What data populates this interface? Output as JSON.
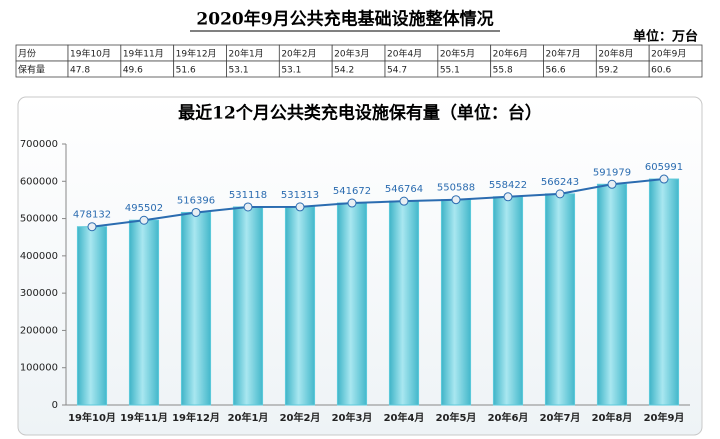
{
  "header": {
    "title": "2020年9月公共充电基础设施整体情况",
    "unit": "单位：万台"
  },
  "table": {
    "rows": [
      [
        "月份",
        "19年10月",
        "19年11月",
        "19年12月",
        "20年1月",
        "20年2月",
        "20年3月",
        "20年4月",
        "20年5月",
        "20年6月",
        "20年7月",
        "20年8月",
        "20年9月"
      ],
      [
        "保有量",
        47.8,
        49.6,
        51.6,
        53.1,
        53.1,
        54.2,
        54.7,
        55.1,
        55.8,
        56.6,
        59.2,
        60.6
      ]
    ]
  },
  "chart_data": {
    "type": "bar",
    "title": "最近12个月公共类充电设施保有量（单位：台）",
    "categories": [
      "19年10月",
      "19年11月",
      "19年12月",
      "20年1月",
      "20年2月",
      "20年3月",
      "20年4月",
      "20年5月",
      "20年6月",
      "20年7月",
      "20年8月",
      "20年9月"
    ],
    "values": [
      478132,
      495502,
      516396,
      531118,
      531313,
      541672,
      546764,
      550588,
      558422,
      566243,
      591979,
      605991
    ],
    "color": "#5cc9da",
    "line": true,
    "line_color": "#2b6cb0",
    "ylim": [
      0,
      700000
    ],
    "yticks": [
      0,
      100000,
      200000,
      300000,
      400000,
      500000,
      600000,
      700000
    ],
    "grid": false
  }
}
